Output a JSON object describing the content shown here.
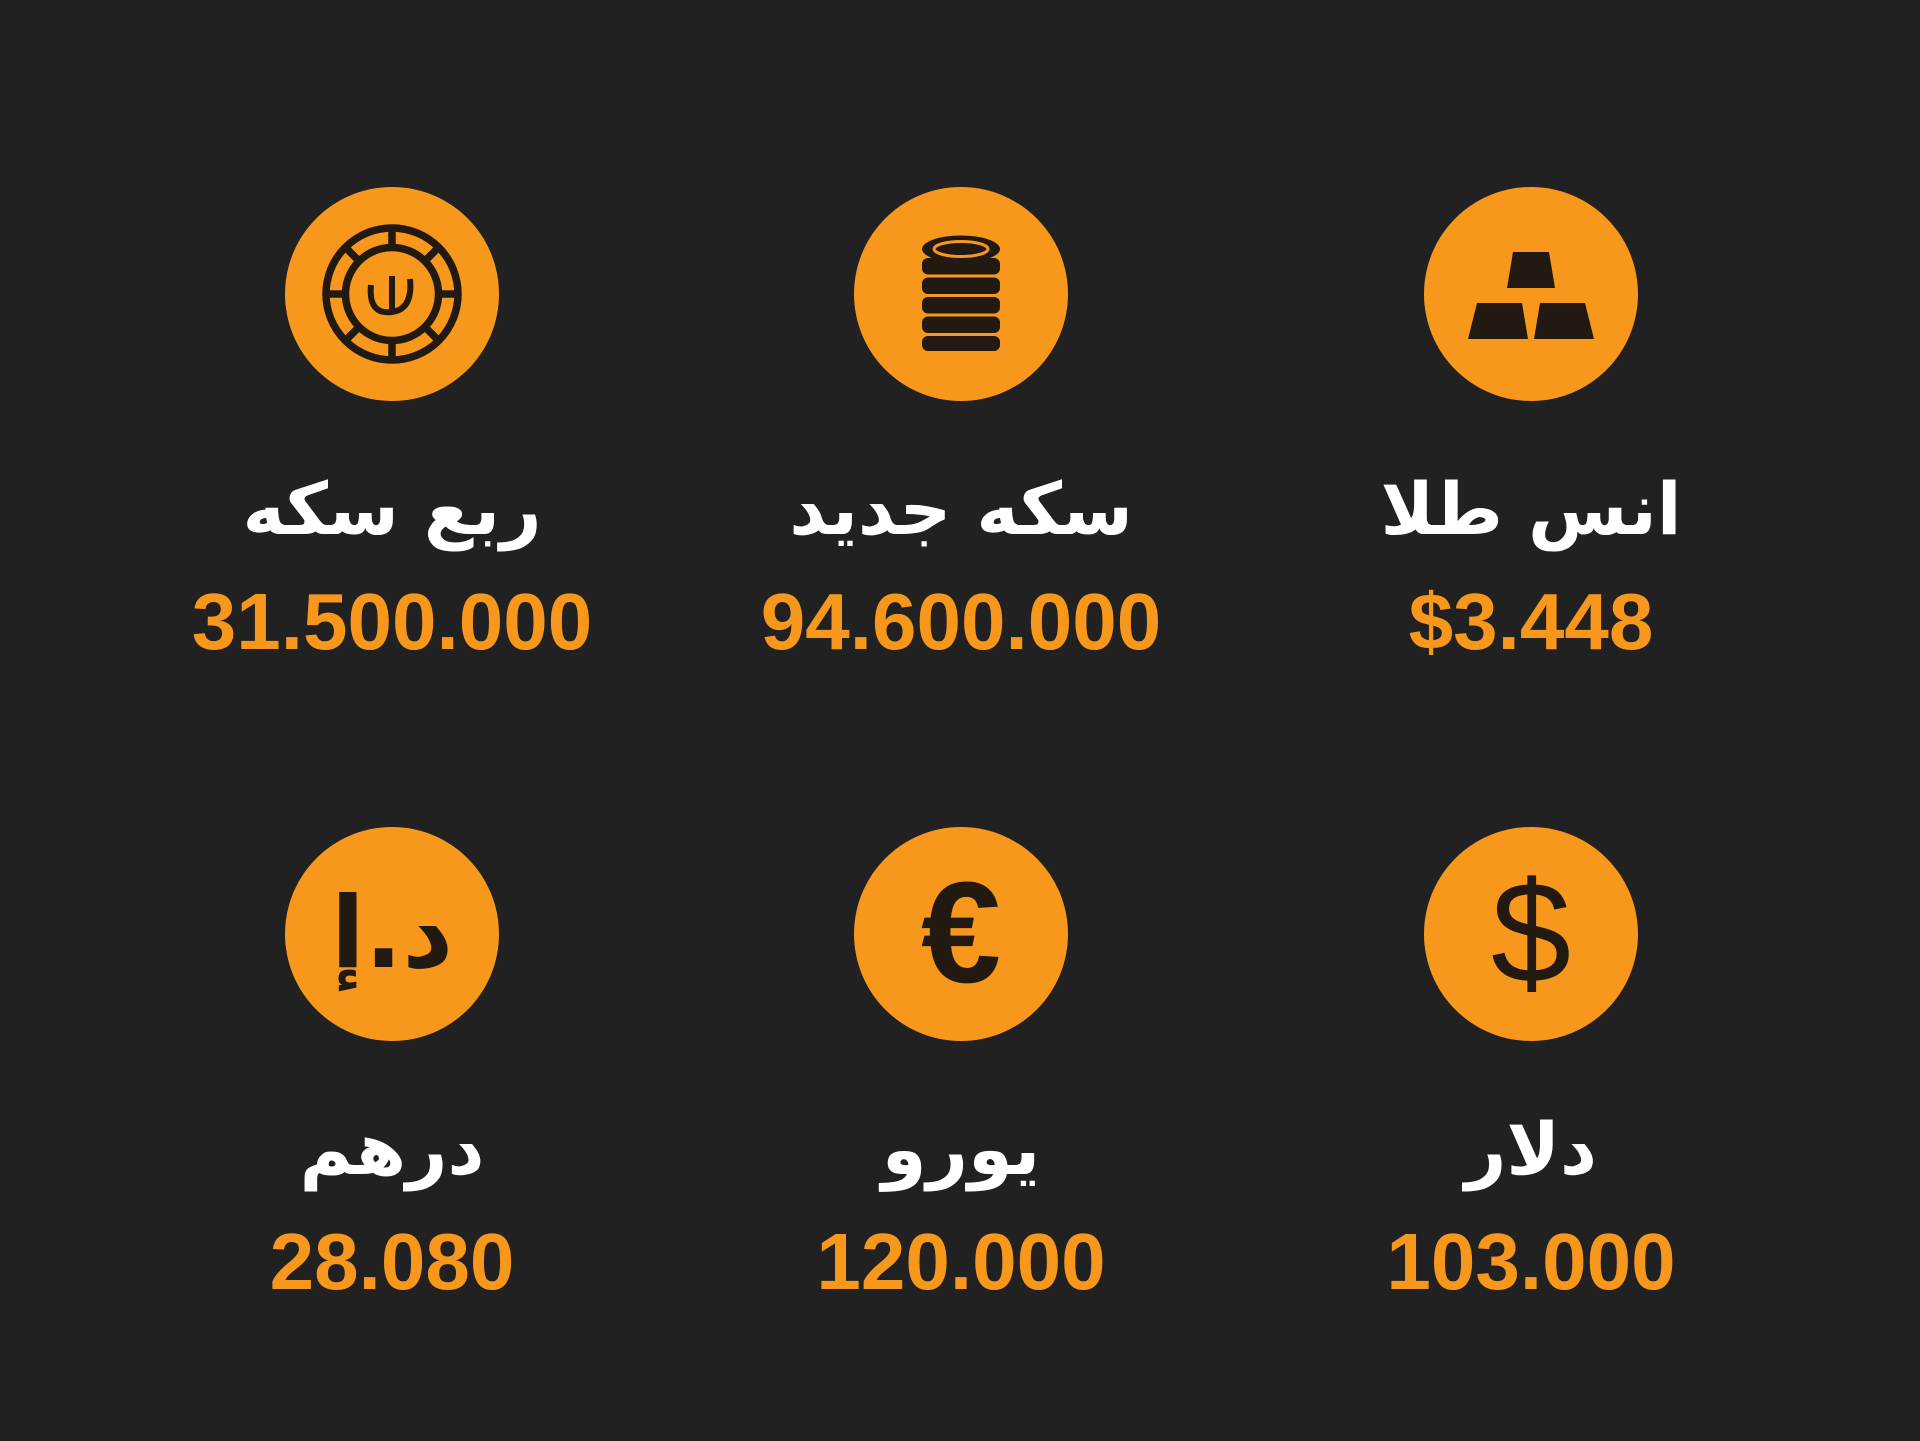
{
  "items": [
    {
      "label": "انس طلا",
      "value": "$3.448",
      "icon": "gold-bars-icon"
    },
    {
      "label": "سکه جدید",
      "value": "94.600.000",
      "icon": "coin-stack-icon"
    },
    {
      "label": "ربع سکه",
      "value": "31.500.000",
      "icon": "rial-coin-icon"
    },
    {
      "label": "دلار",
      "value": "103.000",
      "icon": "dollar-icon"
    },
    {
      "label": "یورو",
      "value": "120.000",
      "icon": "euro-icon"
    },
    {
      "label": "درهم",
      "value": "28.080",
      "icon": "dirham-icon",
      "icon_text": "د.إ"
    }
  ],
  "colors": {
    "background": "#212121",
    "accent": "#f7981d",
    "label": "#ffffff"
  }
}
